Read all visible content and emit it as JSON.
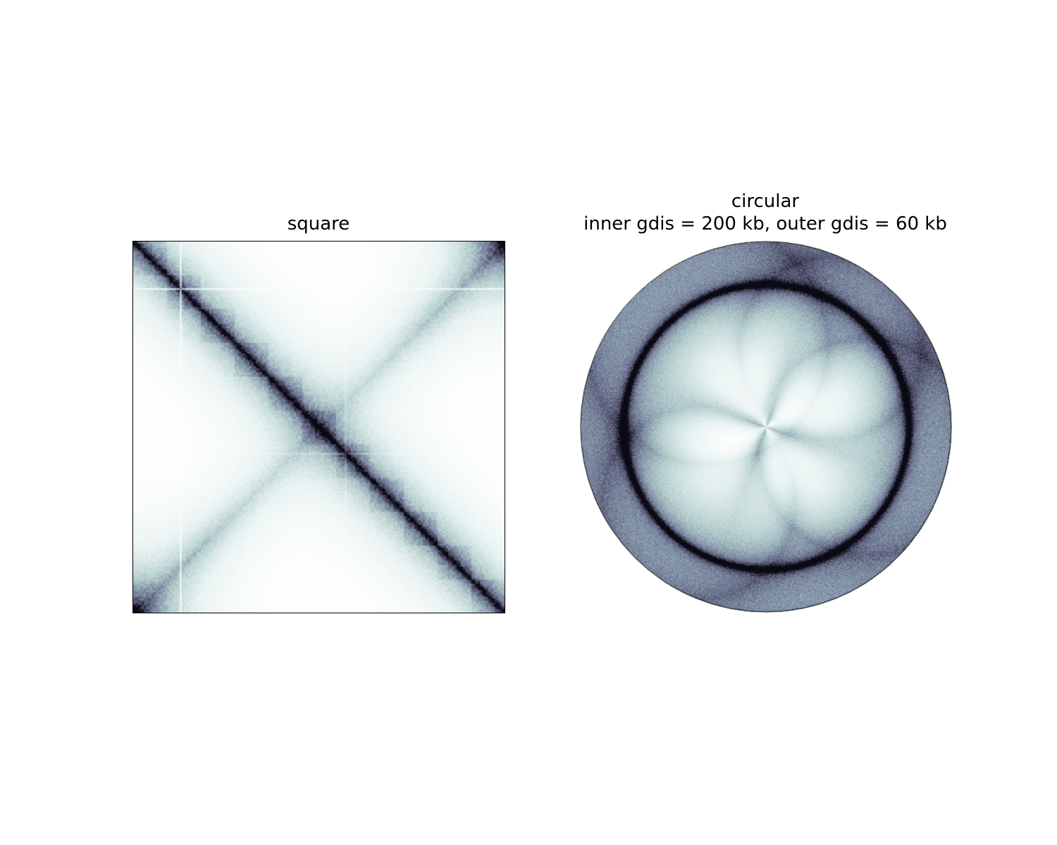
{
  "chart_data": [
    {
      "type": "heatmap",
      "title": "square",
      "colormap": "bone_r",
      "axes_visible": false,
      "shape": "square"
    },
    {
      "type": "heatmap",
      "title_lines": [
        "circular",
        "inner gdis = 200 kb, outer gdis = 60 kb"
      ],
      "colormap": "bone_r",
      "axes_visible": false,
      "shape": "circle"
    }
  ],
  "colors": {
    "dark": "#3b3a55",
    "light": "#ffffff"
  }
}
